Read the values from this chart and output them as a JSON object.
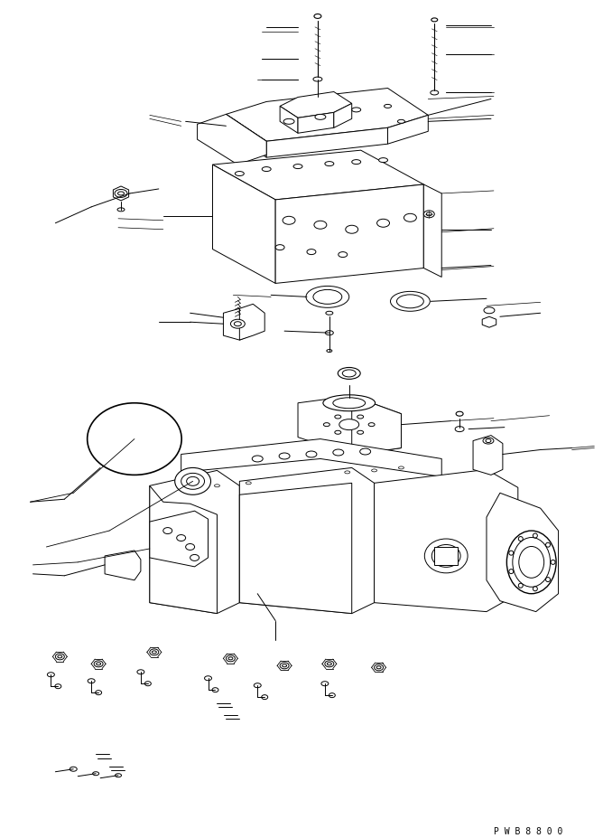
{
  "bg_color": "#ffffff",
  "line_color": "#000000",
  "watermark": "P W B 8 8 0 0",
  "figsize": [
    6.68,
    9.27
  ],
  "dpi": 100
}
